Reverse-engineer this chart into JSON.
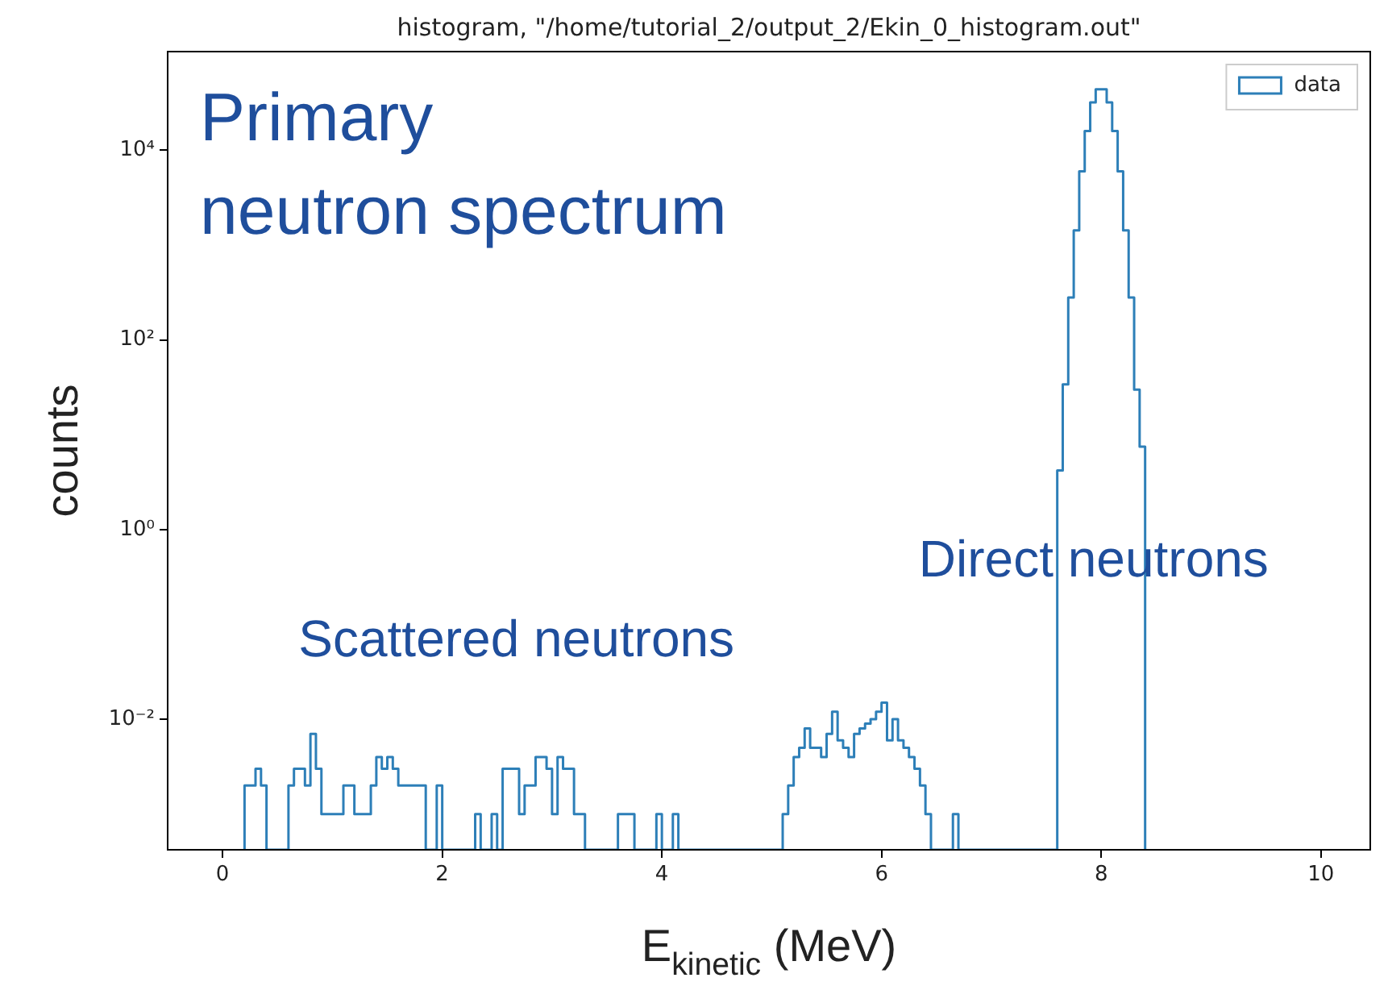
{
  "chart_data": {
    "type": "histogram",
    "title": "histogram, \"/home/tutorial_2/output_2/Ekin_0_histogram.out\"",
    "xlabel": "E$_{kinetic}$ (MeV)",
    "ylabel": "counts",
    "annotations": [
      "Primary\nneutron spectrum",
      "Scattered neutrons",
      "Direct neutrons"
    ],
    "bins": [
      0.2,
      0.25,
      0.3,
      0.35,
      0.4,
      0.45,
      0.5,
      0.55,
      0.6,
      0.65,
      0.7,
      0.75,
      0.8,
      0.85,
      0.9,
      0.95,
      1,
      1.05,
      1.1,
      1.15,
      1.2,
      1.25,
      1.3,
      1.35,
      1.4,
      1.45,
      1.5,
      1.55,
      1.6,
      1.65,
      1.7,
      1.75,
      1.8,
      1.85,
      1.9,
      1.95,
      2,
      2.05,
      2.1,
      2.15,
      2.2,
      2.25,
      2.3,
      2.35,
      2.4,
      2.45,
      2.5,
      2.55,
      2.6,
      2.65,
      2.7,
      2.75,
      2.8,
      2.85,
      2.9,
      2.95,
      3,
      3.05,
      3.1,
      3.15,
      3.2,
      3.25,
      3.3,
      3.35,
      3.4,
      3.45,
      3.5,
      3.55,
      3.6,
      3.65,
      3.7,
      3.75,
      3.8,
      3.85,
      3.9,
      3.95,
      4,
      4.05,
      4.1,
      4.15,
      4.2,
      4.25,
      4.3,
      4.35,
      4.4,
      4.45,
      4.5,
      4.55,
      4.6,
      4.65,
      4.7,
      4.75,
      4.8,
      4.85,
      4.9,
      4.95,
      5,
      5.05,
      5.1,
      5.15,
      5.2,
      5.25,
      5.3,
      5.35,
      5.4,
      5.45,
      5.5,
      5.55,
      5.6,
      5.65,
      5.7,
      5.75,
      5.8,
      5.85,
      5.9,
      5.95,
      6,
      6.05,
      6.1,
      6.15,
      6.2,
      6.25,
      6.3,
      6.35,
      6.4,
      6.45,
      6.5,
      6.55,
      6.6,
      6.65,
      6.7,
      6.75,
      6.8,
      6.85,
      6.9,
      6.95,
      7,
      7.05,
      7.1,
      7.15,
      7.2,
      7.25,
      7.3,
      7.35,
      7.4,
      7.45,
      7.5,
      7.55,
      7.6,
      7.65,
      7.7,
      7.75,
      7.8,
      7.85,
      7.9,
      7.95,
      8,
      8.05,
      8.1,
      8.15,
      8.2,
      8.25,
      8.3,
      8.35,
      8.4
    ],
    "series": [
      {
        "name": "data",
        "color": "#2d7fb8",
        "values": [
          0.002,
          0.002,
          0.003,
          0.002,
          null,
          null,
          null,
          null,
          0.002,
          0.003,
          0.003,
          0.002,
          0.007,
          0.003,
          0.001,
          0.001,
          0.001,
          0.001,
          0.002,
          0.002,
          0.001,
          0.001,
          0.001,
          0.002,
          0.004,
          0.003,
          0.004,
          0.003,
          0.002,
          0.002,
          0.002,
          0.002,
          0.002,
          null,
          null,
          0.002,
          null,
          null,
          null,
          null,
          null,
          null,
          0.001,
          null,
          null,
          0.001,
          null,
          0.003,
          0.003,
          0.003,
          0.001,
          0.002,
          0.002,
          0.004,
          0.004,
          0.003,
          0.001,
          0.004,
          0.003,
          0.003,
          0.001,
          0.001,
          null,
          null,
          null,
          null,
          null,
          null,
          0.001,
          0.001,
          0.001,
          null,
          null,
          null,
          null,
          0.001,
          null,
          null,
          0.001,
          null,
          null,
          null,
          null,
          null,
          null,
          null,
          null,
          null,
          null,
          null,
          null,
          null,
          null,
          null,
          null,
          null,
          null,
          null,
          0.001,
          0.002,
          0.004,
          0.005,
          0.008,
          0.005,
          0.005,
          0.004,
          0.007,
          0.012,
          0.006,
          0.005,
          0.004,
          0.007,
          0.008,
          0.009,
          0.01,
          0.012,
          0.015,
          0.006,
          0.01,
          0.006,
          0.005,
          0.004,
          0.003,
          0.002,
          0.001,
          null,
          null,
          null,
          null,
          0.001,
          null,
          null,
          null,
          null,
          null,
          null,
          null,
          null,
          null,
          null,
          null,
          null,
          null,
          null,
          null,
          null,
          null,
          null,
          4.2,
          34,
          280,
          1430,
          6000,
          16000,
          32000,
          44000,
          44000,
          32000,
          16000,
          6000,
          1430,
          280,
          30,
          7.5
        ]
      }
    ],
    "xlim": [
      -0.5,
      10.45
    ],
    "xticks": [
      0,
      2,
      4,
      6,
      8,
      10
    ],
    "ylim": [
      0.00042,
      110000
    ],
    "yticks": [
      {
        "value": 0.01,
        "label": "10⁻²"
      },
      {
        "value": 1,
        "label": "10⁰"
      },
      {
        "value": 100,
        "label": "10²"
      },
      {
        "value": 10000,
        "label": "10⁴"
      }
    ],
    "log": "y",
    "grid": false,
    "legend": "top right"
  }
}
